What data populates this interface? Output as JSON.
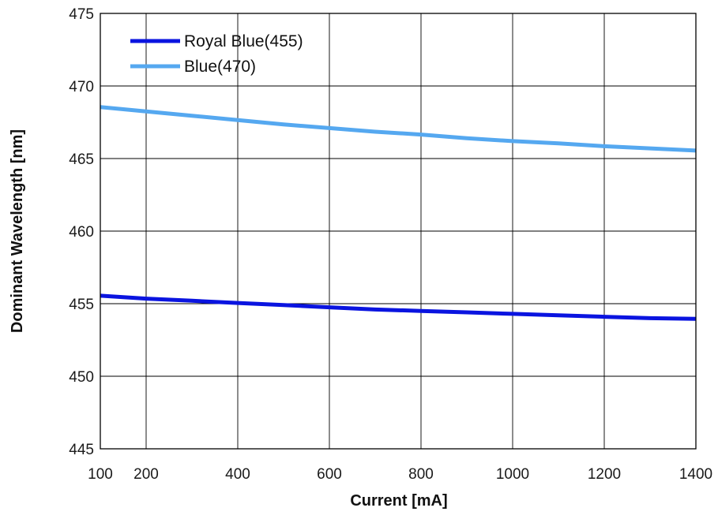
{
  "chart_data": {
    "type": "line",
    "title": "",
    "xlabel": "Current [mA]",
    "ylabel": "Dominant Wavelength [nm]",
    "xlim": [
      100,
      1400
    ],
    "ylim": [
      445,
      475
    ],
    "xticks": [
      100,
      200,
      400,
      600,
      800,
      1000,
      1200,
      1400
    ],
    "xgrid": [
      200,
      400,
      600,
      800,
      1000,
      1200
    ],
    "yticks": [
      445,
      450,
      455,
      460,
      465,
      470,
      475
    ],
    "grid": true,
    "legend_position": "top-left",
    "series": [
      {
        "name": "Royal Blue(455)",
        "color": "#0a14e0",
        "x": [
          100,
          200,
          300,
          400,
          500,
          600,
          700,
          800,
          900,
          1000,
          1100,
          1200,
          1300,
          1400
        ],
        "y": [
          455.55,
          455.35,
          455.2,
          455.05,
          454.9,
          454.75,
          454.6,
          454.5,
          454.4,
          454.3,
          454.2,
          454.1,
          454.0,
          453.95
        ]
      },
      {
        "name": "Blue(470)",
        "color": "#55a8f0",
        "x": [
          100,
          200,
          300,
          400,
          500,
          600,
          700,
          800,
          900,
          1000,
          1100,
          1200,
          1300,
          1400
        ],
        "y": [
          468.55,
          468.25,
          467.95,
          467.65,
          467.35,
          467.1,
          466.85,
          466.65,
          466.4,
          466.2,
          466.05,
          465.85,
          465.7,
          465.55
        ]
      }
    ]
  }
}
